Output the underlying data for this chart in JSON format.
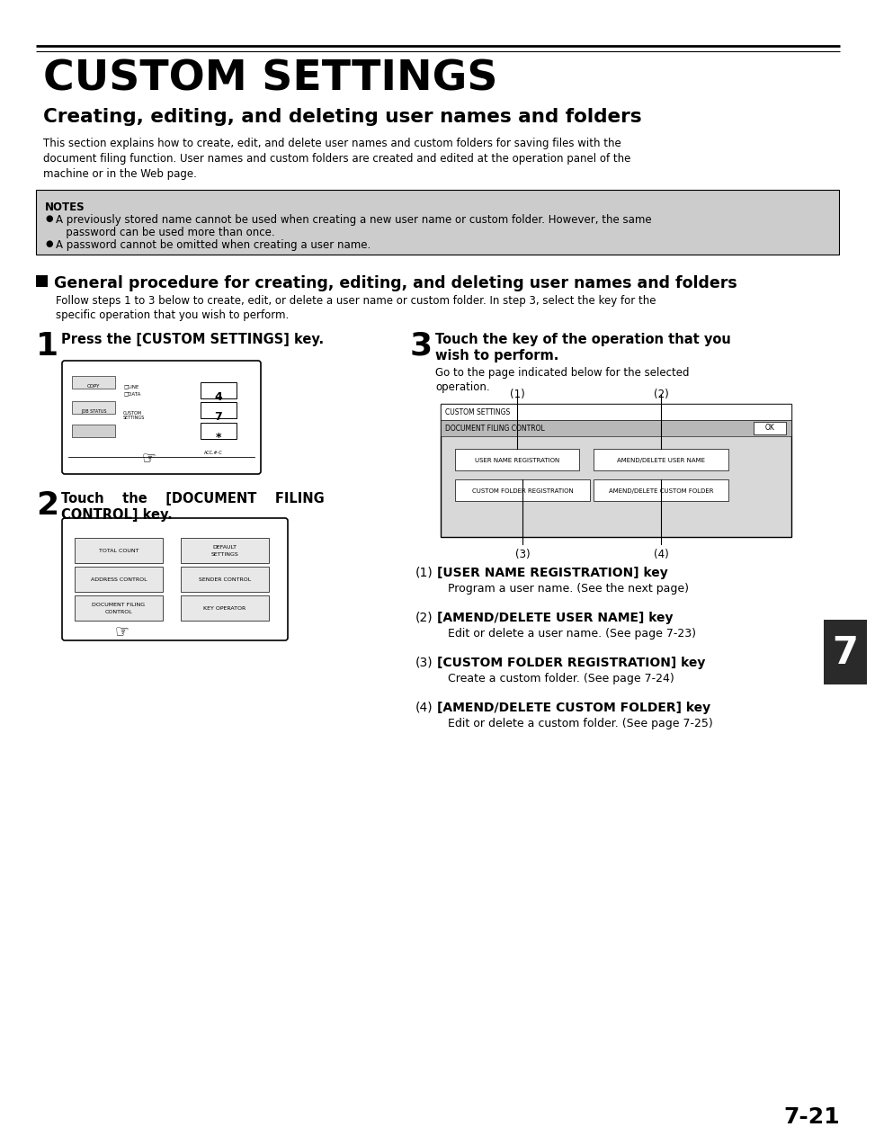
{
  "title": "CUSTOM SETTINGS",
  "subtitle": "Creating, editing, and deleting user names and folders",
  "body_text_1": "This section explains how to create, edit, and delete user names and custom folders for saving files with the",
  "body_text_2": "document filing function. User names and custom folders are created and edited at the operation panel of the",
  "body_text_3": "machine or in the Web page.",
  "notes_title": "NOTES",
  "note1_line1": "A previously stored name cannot be used when creating a new user name or custom folder. However, the same",
  "note1_line2": "   password can be used more than once.",
  "note2": "A password cannot be omitted when creating a user name.",
  "section_title": "General procedure for creating, editing, and deleting user names and folders",
  "section_body_1": "Follow steps 1 to 3 below to create, edit, or delete a user name or custom folder. In step 3, select the key for the",
  "section_body_2": "specific operation that you wish to perform.",
  "step1_num": "1",
  "step1_title": "Press the [CUSTOM SETTINGS] key.",
  "step2_num": "2",
  "step2_title1": "Touch    the    [DOCUMENT    FILING",
  "step2_title2": "CONTROL] key.",
  "step3_num": "3",
  "step3_title1": "Touch the key of the operation that you",
  "step3_title2": "wish to perform.",
  "step3_body1": "Go to the page indicated below for the selected",
  "step3_body2": "operation.",
  "item1_num": "(1)",
  "item1_bold": "[USER NAME REGISTRATION] key",
  "item1_normal": "Program a user name. (See the next page)",
  "item2_num": "(2)",
  "item2_bold": "[AMEND/DELETE USER NAME] key",
  "item2_normal": "Edit or delete a user name. (See page 7-23)",
  "item3_num": "(3)",
  "item3_bold": "[CUSTOM FOLDER REGISTRATION] key",
  "item3_normal": "Create a custom folder. (See page 7-24)",
  "item4_num": "(4)",
  "item4_bold": "[AMEND/DELETE CUSTOM FOLDER] key",
  "item4_normal": "Edit or delete a custom folder. (See page 7-25)",
  "page_num": "7-21",
  "tab_num": "7",
  "bg_color": "#ffffff",
  "notes_bg": "#cccccc",
  "tab_color": "#2a2a2a"
}
